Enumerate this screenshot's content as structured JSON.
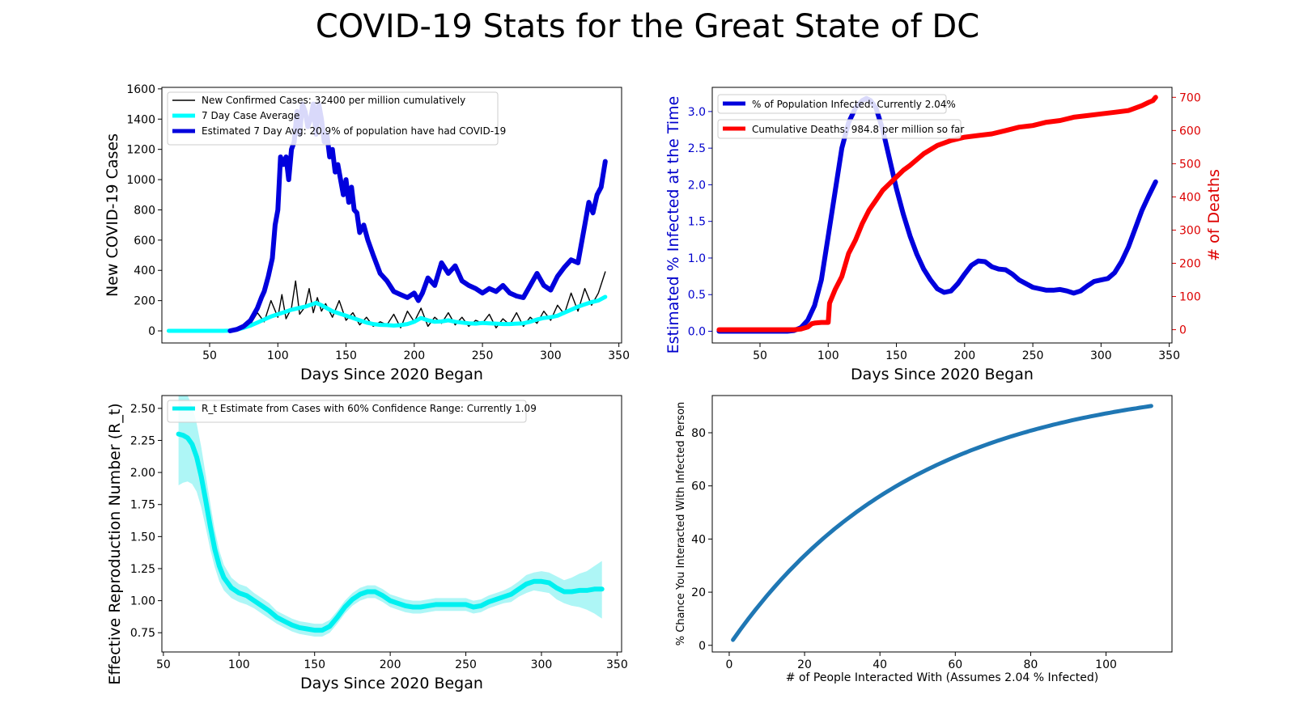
{
  "figure_title": "COVID-19 Stats for the Great State of DC",
  "colors": {
    "cases_line": "#000000",
    "avg7": "#00ffff",
    "est7": "#0000dd",
    "pct_infected": "#0000dd",
    "deaths": "#ff0000",
    "rt_line": "#00f0f0",
    "rt_band": "#aef6f6",
    "chance_line": "#1f77b4",
    "left_axis_text": "#0000cc",
    "right_axis_text": "#dd0000"
  },
  "chart_data": [
    {
      "id": "cases",
      "type": "line",
      "title": "",
      "xlabel": "Days Since 2020 Began",
      "ylabel": "New COVID-19 Cases",
      "xlim": [
        15,
        352
      ],
      "ylim": [
        -80,
        1610
      ],
      "xticks": [
        50,
        100,
        150,
        200,
        250,
        300,
        350
      ],
      "yticks": [
        0,
        200,
        400,
        600,
        800,
        1000,
        1200,
        1400,
        1600
      ],
      "legend_position": "top-left",
      "series": [
        {
          "name": "New Confirmed Cases: 32400 per million cumulatively",
          "key": "cases",
          "x": [
            20,
            60,
            65,
            70,
            75,
            80,
            85,
            90,
            95,
            100,
            103,
            106,
            110,
            113,
            116,
            120,
            123,
            126,
            129,
            132,
            135,
            140,
            145,
            150,
            155,
            160,
            165,
            170,
            175,
            180,
            185,
            190,
            195,
            200,
            205,
            210,
            215,
            220,
            225,
            230,
            235,
            240,
            245,
            250,
            255,
            260,
            265,
            270,
            275,
            280,
            285,
            290,
            295,
            300,
            305,
            310,
            315,
            320,
            325,
            330,
            335,
            340
          ],
          "y": [
            0,
            0,
            5,
            15,
            30,
            45,
            120,
            60,
            200,
            90,
            240,
            80,
            150,
            330,
            110,
            160,
            280,
            120,
            220,
            130,
            180,
            90,
            200,
            70,
            120,
            40,
            90,
            30,
            60,
            40,
            110,
            20,
            130,
            60,
            150,
            30,
            90,
            50,
            120,
            40,
            90,
            30,
            70,
            50,
            110,
            20,
            80,
            40,
            120,
            30,
            90,
            50,
            130,
            70,
            170,
            110,
            250,
            130,
            280,
            170,
            250,
            390
          ]
        },
        {
          "name": "7 Day Case Average",
          "key": "avg7",
          "x": [
            20,
            60,
            65,
            70,
            75,
            80,
            85,
            90,
            95,
            100,
            105,
            110,
            115,
            120,
            125,
            128,
            132,
            136,
            140,
            145,
            150,
            155,
            160,
            165,
            170,
            175,
            180,
            185,
            190,
            195,
            200,
            205,
            210,
            215,
            220,
            225,
            230,
            235,
            240,
            245,
            250,
            255,
            260,
            265,
            270,
            275,
            280,
            285,
            290,
            295,
            300,
            305,
            310,
            315,
            320,
            325,
            330,
            335,
            340
          ],
          "y": [
            0,
            0,
            2,
            8,
            20,
            35,
            55,
            75,
            95,
            110,
            125,
            140,
            150,
            160,
            175,
            185,
            170,
            150,
            130,
            115,
            100,
            85,
            70,
            55,
            45,
            40,
            38,
            35,
            38,
            45,
            60,
            85,
            70,
            60,
            62,
            70,
            60,
            55,
            50,
            48,
            52,
            50,
            48,
            45,
            45,
            48,
            50,
            60,
            75,
            85,
            90,
            100,
            120,
            140,
            160,
            175,
            190,
            200,
            225
          ]
        },
        {
          "name": "Estimated 7 Day Avg: 20.9% of population have had COVID-19",
          "key": "est7",
          "x": [
            65,
            70,
            75,
            80,
            85,
            88,
            90,
            93,
            96,
            98,
            100,
            102,
            104,
            106,
            108,
            110,
            112,
            114,
            116,
            118,
            120,
            122,
            124,
            126,
            128,
            130,
            132,
            134,
            136,
            138,
            140,
            142,
            144,
            146,
            148,
            150,
            152,
            154,
            156,
            158,
            160,
            163,
            166,
            170,
            175,
            180,
            185,
            190,
            195,
            200,
            203,
            206,
            210,
            215,
            220,
            225,
            230,
            235,
            240,
            245,
            250,
            255,
            260,
            265,
            270,
            275,
            280,
            285,
            290,
            295,
            300,
            305,
            310,
            315,
            320,
            325,
            328,
            331,
            334,
            337,
            340
          ],
          "y": [
            0,
            10,
            30,
            70,
            150,
            220,
            260,
            360,
            480,
            700,
            800,
            1150,
            1100,
            1150,
            1000,
            1200,
            1250,
            1450,
            1300,
            1500,
            1450,
            1350,
            1400,
            1500,
            1300,
            1500,
            1400,
            1250,
            1300,
            1150,
            1200,
            1050,
            1100,
            1000,
            900,
            1000,
            850,
            950,
            800,
            780,
            650,
            700,
            600,
            500,
            380,
            330,
            260,
            240,
            220,
            250,
            200,
            250,
            350,
            300,
            450,
            380,
            430,
            330,
            300,
            280,
            250,
            280,
            260,
            300,
            250,
            230,
            220,
            300,
            380,
            300,
            270,
            360,
            420,
            470,
            450,
            700,
            850,
            780,
            900,
            950,
            1120
          ]
        }
      ]
    },
    {
      "id": "infected",
      "type": "line",
      "title": "",
      "xlabel": "Days Since 2020 Began",
      "ylabel": "Estimated % Infected at the Time",
      "ylabel_right": "# of Deaths",
      "xlim": [
        15,
        352
      ],
      "ylim": [
        -0.16,
        3.33
      ],
      "ylim_right": [
        -40,
        730
      ],
      "xticks": [
        50,
        100,
        150,
        200,
        250,
        300,
        350
      ],
      "yticks": [
        0.0,
        0.5,
        1.0,
        1.5,
        2.0,
        2.5,
        3.0
      ],
      "ytick_labels": [
        "0.0",
        "0.5",
        "1.0",
        "1.5",
        "2.0",
        "2.5",
        "3.0"
      ],
      "yticks_right": [
        0,
        100,
        200,
        300,
        400,
        500,
        600,
        700
      ],
      "legend_position": "top-left",
      "series": [
        {
          "name": "% of Population Infected: Currently 2.04%",
          "key": "pct_infected",
          "axis": "left",
          "x": [
            20,
            60,
            70,
            75,
            80,
            85,
            90,
            95,
            100,
            105,
            110,
            115,
            120,
            125,
            128,
            131,
            135,
            140,
            145,
            150,
            155,
            160,
            165,
            170,
            175,
            180,
            185,
            190,
            195,
            200,
            205,
            210,
            215,
            220,
            225,
            230,
            235,
            240,
            245,
            250,
            255,
            260,
            265,
            270,
            275,
            280,
            285,
            290,
            295,
            300,
            305,
            310,
            315,
            320,
            325,
            330,
            335,
            340
          ],
          "y": [
            0,
            0,
            0,
            0.01,
            0.05,
            0.15,
            0.35,
            0.7,
            1.3,
            1.9,
            2.5,
            2.85,
            3.05,
            3.15,
            3.18,
            3.15,
            3.05,
            2.75,
            2.35,
            1.95,
            1.6,
            1.3,
            1.05,
            0.85,
            0.7,
            0.58,
            0.53,
            0.55,
            0.65,
            0.78,
            0.9,
            0.96,
            0.95,
            0.88,
            0.85,
            0.84,
            0.78,
            0.7,
            0.65,
            0.6,
            0.58,
            0.56,
            0.56,
            0.57,
            0.55,
            0.52,
            0.55,
            0.62,
            0.68,
            0.7,
            0.72,
            0.8,
            0.95,
            1.15,
            1.4,
            1.65,
            1.85,
            2.04
          ]
        },
        {
          "name": "Cumulative Deaths: 984.8 per million so far",
          "key": "deaths",
          "axis": "right",
          "x": [
            20,
            75,
            80,
            85,
            88,
            90,
            95,
            100,
            101,
            105,
            110,
            115,
            120,
            125,
            130,
            135,
            140,
            145,
            150,
            155,
            160,
            170,
            180,
            190,
            200,
            210,
            220,
            230,
            240,
            250,
            260,
            270,
            280,
            290,
            300,
            310,
            320,
            330,
            335,
            338,
            340
          ],
          "y": [
            0,
            0,
            2,
            8,
            18,
            20,
            22,
            22,
            80,
            120,
            160,
            230,
            270,
            320,
            360,
            390,
            420,
            440,
            460,
            480,
            495,
            530,
            555,
            570,
            580,
            585,
            590,
            600,
            610,
            615,
            625,
            630,
            640,
            645,
            650,
            655,
            660,
            675,
            685,
            690,
            700
          ]
        }
      ]
    },
    {
      "id": "rt",
      "type": "area",
      "title": "",
      "xlabel": "Days Since 2020 Began",
      "ylabel": "Effective Reproduction Number (R_t)",
      "xlim": [
        49,
        353
      ],
      "ylim": [
        0.6,
        2.6
      ],
      "xticks": [
        50,
        100,
        150,
        200,
        250,
        300,
        350
      ],
      "yticks": [
        0.75,
        1.0,
        1.25,
        1.5,
        1.75,
        2.0,
        2.25,
        2.5
      ],
      "ytick_labels": [
        "0.75",
        "1.00",
        "1.25",
        "1.50",
        "1.75",
        "2.00",
        "2.25",
        "2.50"
      ],
      "legend_position": "top-left",
      "series": [
        {
          "name": "R_t Estimate from Cases with 60% Confidence Range: Currently 1.09",
          "key": "rt",
          "x": [
            60,
            63,
            66,
            69,
            72,
            75,
            78,
            81,
            84,
            87,
            90,
            95,
            100,
            105,
            110,
            115,
            120,
            125,
            130,
            135,
            140,
            145,
            150,
            155,
            160,
            165,
            170,
            175,
            180,
            185,
            190,
            195,
            200,
            205,
            210,
            215,
            220,
            225,
            230,
            235,
            240,
            245,
            250,
            255,
            260,
            265,
            270,
            275,
            280,
            285,
            290,
            295,
            300,
            305,
            310,
            315,
            320,
            325,
            330,
            335,
            340
          ],
          "y": [
            2.3,
            2.29,
            2.27,
            2.22,
            2.12,
            1.97,
            1.78,
            1.58,
            1.4,
            1.27,
            1.18,
            1.1,
            1.06,
            1.04,
            1.0,
            0.96,
            0.92,
            0.87,
            0.84,
            0.81,
            0.79,
            0.78,
            0.77,
            0.77,
            0.8,
            0.87,
            0.95,
            1.01,
            1.05,
            1.07,
            1.07,
            1.04,
            1.0,
            0.98,
            0.96,
            0.95,
            0.95,
            0.96,
            0.97,
            0.97,
            0.97,
            0.97,
            0.97,
            0.95,
            0.96,
            0.99,
            1.01,
            1.03,
            1.05,
            1.09,
            1.13,
            1.15,
            1.15,
            1.14,
            1.1,
            1.07,
            1.07,
            1.08,
            1.08,
            1.09,
            1.09
          ],
          "lower": [
            1.9,
            1.92,
            1.93,
            1.91,
            1.85,
            1.73,
            1.57,
            1.4,
            1.26,
            1.15,
            1.08,
            1.02,
            0.99,
            0.97,
            0.94,
            0.9,
            0.86,
            0.82,
            0.79,
            0.76,
            0.74,
            0.73,
            0.72,
            0.72,
            0.75,
            0.82,
            0.9,
            0.96,
            1.0,
            1.02,
            1.02,
            0.99,
            0.95,
            0.93,
            0.91,
            0.9,
            0.9,
            0.91,
            0.92,
            0.92,
            0.92,
            0.92,
            0.92,
            0.9,
            0.91,
            0.94,
            0.96,
            0.98,
            0.99,
            1.03,
            1.06,
            1.08,
            1.07,
            1.06,
            1.01,
            0.98,
            0.96,
            0.95,
            0.93,
            0.9,
            0.86
          ],
          "upper": [
            2.6,
            2.62,
            2.6,
            2.52,
            2.38,
            2.2,
            1.98,
            1.76,
            1.55,
            1.39,
            1.28,
            1.18,
            1.13,
            1.11,
            1.06,
            1.02,
            0.98,
            0.92,
            0.89,
            0.86,
            0.84,
            0.83,
            0.82,
            0.82,
            0.85,
            0.92,
            1.0,
            1.06,
            1.1,
            1.12,
            1.12,
            1.09,
            1.05,
            1.03,
            1.01,
            1.0,
            1.0,
            1.01,
            1.02,
            1.02,
            1.02,
            1.02,
            1.02,
            1.0,
            1.01,
            1.04,
            1.06,
            1.08,
            1.11,
            1.15,
            1.2,
            1.22,
            1.23,
            1.22,
            1.19,
            1.16,
            1.18,
            1.21,
            1.23,
            1.27,
            1.31
          ]
        }
      ]
    },
    {
      "id": "chance",
      "type": "line",
      "title": "",
      "xlabel": "# of People Interacted With (Assumes 2.04 % Infected)",
      "ylabel": "% Chance You Interacted With Infected Person",
      "xlim": [
        -4.5,
        117.5
      ],
      "ylim": [
        -2.5,
        94
      ],
      "xticks": [
        0,
        20,
        40,
        60,
        80,
        100
      ],
      "yticks": [
        0,
        20,
        40,
        60,
        80
      ],
      "series": [
        {
          "name": "",
          "key": "chance_line",
          "formula": "100*(1-(1-p)^n)",
          "p": 0.0204,
          "n_range": [
            1,
            112
          ]
        }
      ]
    }
  ]
}
